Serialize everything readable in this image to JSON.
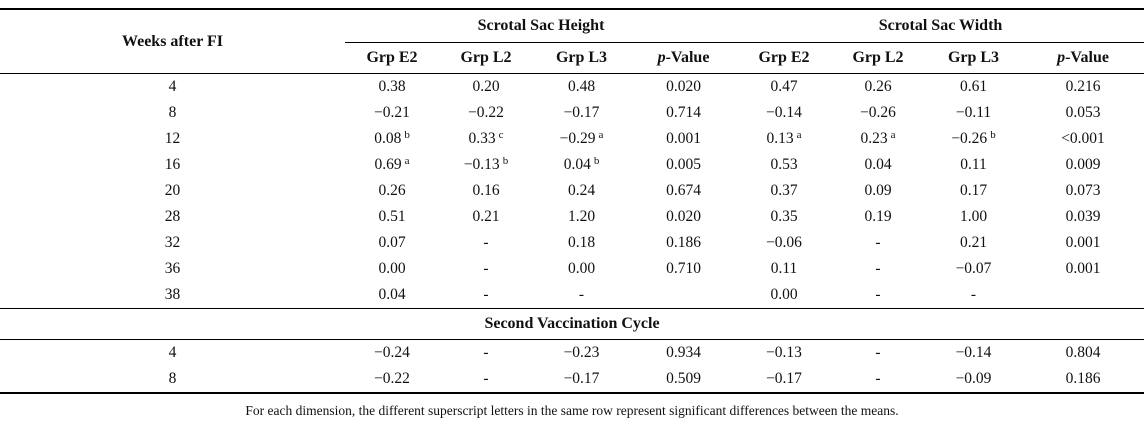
{
  "table": {
    "week_header": "Weeks after FI",
    "spanner_height": "Scrotal Sac Height",
    "spanner_width": "Scrotal Sac Width",
    "group_headers": [
      "Grp E2",
      "Grp L2",
      "Grp L3"
    ],
    "p_value_header": {
      "p": "p",
      "rest": "-Value"
    },
    "rows_cycle1": [
      {
        "week": "4",
        "cells": [
          "0.38",
          "0.20",
          "0.48",
          "0.020",
          "0.47",
          "0.26",
          "0.61",
          "0.216"
        ]
      },
      {
        "week": "8",
        "cells": [
          "−0.21",
          "−0.22",
          "−0.17",
          "0.714",
          "−0.14",
          "−0.26",
          "−0.11",
          "0.053"
        ]
      },
      {
        "week": "12",
        "cells": [
          {
            "v": "0.08",
            "s": "b"
          },
          {
            "v": "0.33",
            "s": "c"
          },
          {
            "v": "−0.29",
            "s": "a"
          },
          "0.001",
          {
            "v": "0.13",
            "s": "a"
          },
          {
            "v": "0.23",
            "s": "a"
          },
          {
            "v": "−0.26",
            "s": "b"
          },
          "<0.001"
        ]
      },
      {
        "week": "16",
        "cells": [
          {
            "v": "0.69",
            "s": "a"
          },
          {
            "v": "−0.13",
            "s": "b"
          },
          {
            "v": "0.04",
            "s": "b"
          },
          "0.005",
          "0.53",
          "0.04",
          "0.11",
          "0.009"
        ]
      },
      {
        "week": "20",
        "cells": [
          "0.26",
          "0.16",
          "0.24",
          "0.674",
          "0.37",
          "0.09",
          "0.17",
          "0.073"
        ]
      },
      {
        "week": "28",
        "cells": [
          "0.51",
          "0.21",
          "1.20",
          "0.020",
          "0.35",
          "0.19",
          "1.00",
          "0.039"
        ]
      },
      {
        "week": "32",
        "cells": [
          "0.07",
          "-",
          "0.18",
          "0.186",
          "−0.06",
          "-",
          "0.21",
          "0.001"
        ]
      },
      {
        "week": "36",
        "cells": [
          "0.00",
          "-",
          "0.00",
          "0.710",
          "0.11",
          "-",
          "−0.07",
          "0.001"
        ]
      },
      {
        "week": "38",
        "cells": [
          "0.04",
          "-",
          "-",
          "",
          "0.00",
          "-",
          "-",
          ""
        ]
      }
    ],
    "section_label": "Second Vaccination Cycle",
    "rows_cycle2": [
      {
        "week": "4",
        "cells": [
          "−0.24",
          "-",
          "−0.23",
          "0.934",
          "−0.13",
          "-",
          "−0.14",
          "0.804"
        ]
      },
      {
        "week": "8",
        "cells": [
          "−0.22",
          "-",
          "−0.17",
          "0.509",
          "−0.17",
          "-",
          "−0.09",
          "0.186"
        ]
      }
    ],
    "footnote": "For each dimension, the different superscript letters in the same row represent significant differences between the means."
  }
}
